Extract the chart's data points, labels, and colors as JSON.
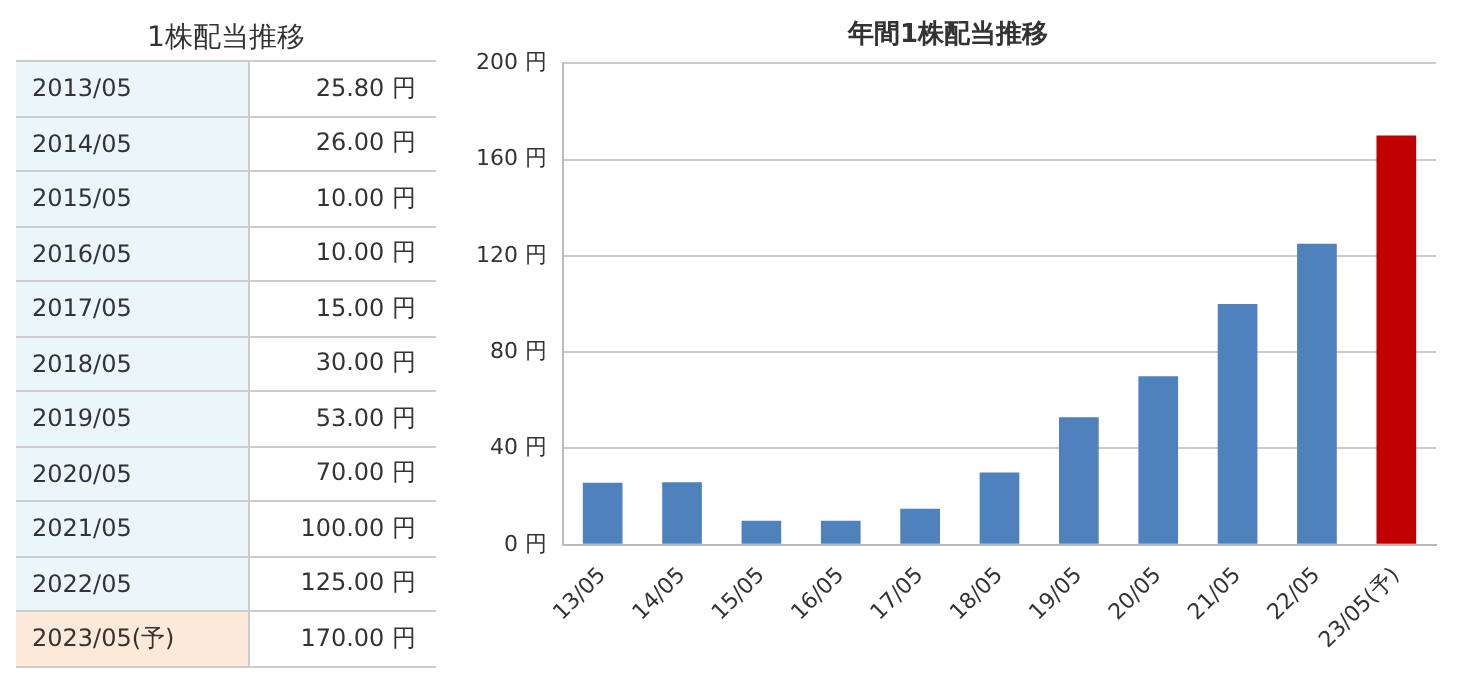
{
  "chart_data": [
    {
      "type": "other",
      "title": "1株配当推移",
      "categories": [
        "2013/05",
        "2014/05",
        "2015/05",
        "2016/05",
        "2017/05",
        "2018/05",
        "2019/05",
        "2020/05",
        "2021/05",
        "2022/05",
        "2023/05(予)"
      ],
      "value_labels": [
        "25.80 円",
        "26.00 円",
        "10.00 円",
        "10.00 円",
        "15.00 円",
        "30.00 円",
        "53.00 円",
        "70.00 円",
        "100.00 円",
        "125.00 円",
        "170.00 円"
      ],
      "colors": [
        "#eaf6f8",
        "#eaf6f8",
        "#eaf6f8",
        "#eaf6f8",
        "#eaf6f8",
        "#eaf6f8",
        "#eaf6f8",
        "#eaf6f8",
        "#eaf6f8",
        "#eaf6f8",
        "#fde9da"
      ]
    },
    {
      "type": "bar",
      "title": "年間1株配当推移",
      "categories": [
        "13/05",
        "14/05",
        "15/05",
        "16/05",
        "17/05",
        "18/05",
        "19/05",
        "20/05",
        "21/05",
        "22/05",
        "23/05(予)"
      ],
      "values": [
        25.8,
        26,
        10,
        10,
        15,
        30,
        53,
        70,
        100,
        125,
        170
      ],
      "colors": [
        "#4f81bd",
        "#4f81bd",
        "#4f81bd",
        "#4f81bd",
        "#4f81bd",
        "#4f81bd",
        "#4f81bd",
        "#4f81bd",
        "#4f81bd",
        "#4f81bd",
        "#c00000"
      ],
      "ylim": [
        0,
        200
      ],
      "yticks": [
        {
          "value": 0,
          "label": "0 円"
        },
        {
          "value": 40,
          "label": "40 円"
        },
        {
          "value": 80,
          "label": "80 円"
        },
        {
          "value": 120,
          "label": "120 円"
        },
        {
          "value": 160,
          "label": "160 円"
        },
        {
          "value": 200,
          "label": "200 円"
        }
      ],
      "grid": "y"
    }
  ]
}
